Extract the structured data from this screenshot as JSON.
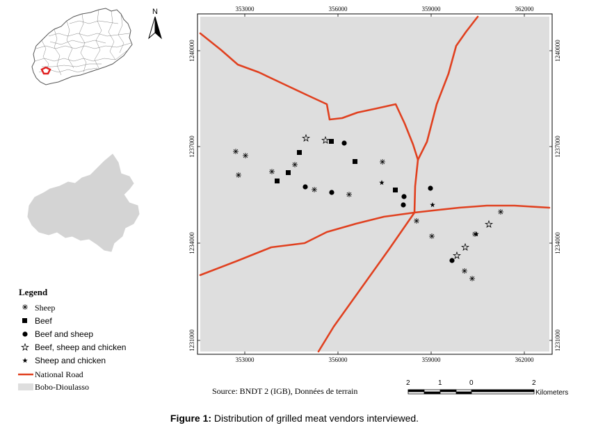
{
  "north_label": "N",
  "x_ticks": [
    "353000",
    "356000",
    "359000",
    "362000"
  ],
  "y_ticks": [
    "1240000",
    "1237000",
    "1234000",
    "1231000"
  ],
  "legend": {
    "title": "Legend",
    "items": [
      {
        "label": "Sheep",
        "symbol": "asterisk"
      },
      {
        "label": "Beef",
        "symbol": "square"
      },
      {
        "label": "Beef and sheep",
        "symbol": "circle"
      },
      {
        "label": "Beef, sheep and chicken",
        "symbol": "open-star"
      },
      {
        "label": "Sheep and chicken",
        "symbol": "filled-star"
      },
      {
        "label": "National Road",
        "symbol": "red-line"
      },
      {
        "label": "Bobo-Dioulasso",
        "symbol": "grey-box"
      }
    ]
  },
  "source": "Source: BNDT 2 (IGB), Données de terrain",
  "scale_bar": {
    "labels": [
      "2",
      "1",
      "0",
      "2"
    ],
    "unit": "Kilometers"
  },
  "caption": {
    "prefix": "Figure 1:",
    "text": " Distribution of grilled meat vendors interviewed."
  },
  "colors": {
    "road": "#e0401f",
    "city": "#dedede",
    "inset": "#d4d4d4",
    "boundary": "#555555"
  }
}
